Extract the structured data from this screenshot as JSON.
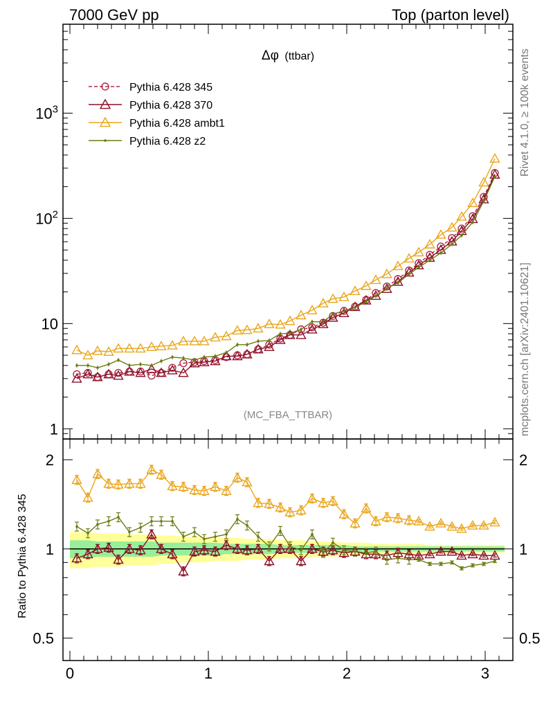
{
  "header": {
    "left": "7000 GeV pp",
    "right": "Top (parton level)"
  },
  "side_notes": {
    "rivet": "Rivet 4.1.0, ≥ 100k events",
    "mcplots": "mcplots.cern.ch [arXiv:2401.10621]"
  },
  "chart_data": {
    "type": "line",
    "title_symbol": "Δφ",
    "title_suffix": "(ttbar)",
    "reference_label": "(MC_FBA_TTBAR)",
    "xlim": [
      -0.05,
      3.2
    ],
    "main_panel": {
      "yscale": "log",
      "ylim": [
        0.8,
        7000
      ],
      "yticks": [
        {
          "value": 1,
          "label": "1"
        },
        {
          "value": 10,
          "label": "10"
        },
        {
          "value": 100,
          "label": "10",
          "sup": "2"
        },
        {
          "value": 1000,
          "label": "10",
          "sup": "3"
        }
      ]
    },
    "ratio_panel": {
      "ylabel": "Ratio to Pythia 6.428 345",
      "yscale": "log",
      "ylim": [
        0.42,
        2.35
      ],
      "yticks": [
        {
          "value": 0.5,
          "label": "0.5"
        },
        {
          "value": 1,
          "label": "1"
        },
        {
          "value": 2,
          "label": "2"
        }
      ]
    },
    "xticks": [
      {
        "value": 0,
        "label": "0"
      },
      {
        "value": 1,
        "label": "1"
      },
      {
        "value": 2,
        "label": "2"
      },
      {
        "value": 3,
        "label": "3"
      }
    ],
    "x": [
      0.05,
      0.13,
      0.2,
      0.28,
      0.35,
      0.43,
      0.51,
      0.59,
      0.66,
      0.74,
      0.82,
      0.9,
      0.97,
      1.05,
      1.13,
      1.21,
      1.28,
      1.36,
      1.44,
      1.52,
      1.59,
      1.67,
      1.75,
      1.83,
      1.9,
      1.98,
      2.06,
      2.14,
      2.21,
      2.29,
      2.37,
      2.45,
      2.52,
      2.6,
      2.68,
      2.76,
      2.83,
      2.91,
      2.99,
      3.07
    ],
    "ratio_band": {
      "inner_halfwidth": [
        0.07,
        0.07,
        0.06,
        0.06,
        0.06,
        0.06,
        0.06,
        0.06,
        0.05,
        0.05,
        0.05,
        0.05,
        0.05,
        0.05,
        0.04,
        0.04,
        0.04,
        0.04,
        0.04,
        0.03,
        0.03,
        0.03,
        0.03,
        0.03,
        0.03,
        0.03,
        0.02,
        0.02,
        0.02,
        0.02,
        0.02,
        0.02,
        0.02,
        0.02,
        0.02,
        0.02,
        0.02,
        0.02,
        0.02,
        0.02
      ],
      "outer_halfwidth": [
        0.14,
        0.14,
        0.13,
        0.13,
        0.13,
        0.12,
        0.12,
        0.12,
        0.11,
        0.11,
        0.1,
        0.1,
        0.1,
        0.09,
        0.09,
        0.09,
        0.08,
        0.08,
        0.08,
        0.07,
        0.07,
        0.07,
        0.06,
        0.06,
        0.06,
        0.05,
        0.05,
        0.05,
        0.04,
        0.04,
        0.04,
        0.04,
        0.04,
        0.03,
        0.03,
        0.03,
        0.03,
        0.03,
        0.03,
        0.03
      ]
    },
    "series": [
      {
        "name": "Pythia 6.428 345",
        "color": "#b0284a",
        "marker": "circle",
        "dashed": true,
        "values": [
          3.3,
          3.4,
          3.1,
          3.3,
          3.4,
          3.5,
          3.5,
          3.2,
          3.4,
          3.8,
          4.2,
          4.3,
          4.4,
          4.5,
          4.8,
          5.0,
          5.1,
          5.7,
          6.3,
          7.2,
          7.8,
          8.8,
          9.2,
          10.2,
          11.8,
          13.2,
          14.5,
          16.8,
          19.5,
          22.5,
          26.5,
          32.0,
          37.5,
          45.0,
          54.0,
          65.0,
          80.0,
          105.0,
          160.0,
          270.0
        ],
        "ratio": [
          1.0,
          1.0,
          1.0,
          1.0,
          1.0,
          1.0,
          1.0,
          1.0,
          1.0,
          1.0,
          1.0,
          1.0,
          1.0,
          1.0,
          1.0,
          1.0,
          1.0,
          1.0,
          1.0,
          1.0,
          1.0,
          1.0,
          1.0,
          1.0,
          1.0,
          1.0,
          1.0,
          1.0,
          1.0,
          1.0,
          1.0,
          1.0,
          1.0,
          1.0,
          1.0,
          1.0,
          1.0,
          1.0,
          1.0,
          1.0
        ],
        "show_ratio": false
      },
      {
        "name": "Pythia 6.428 370",
        "color": "#8b0f26",
        "marker": "triangle-open",
        "dashed": false,
        "values": [
          3.0,
          3.3,
          3.1,
          3.3,
          3.2,
          3.5,
          3.4,
          3.7,
          3.4,
          3.6,
          3.4,
          4.2,
          4.3,
          4.4,
          4.9,
          4.9,
          5.1,
          5.7,
          6.0,
          7.0,
          7.8,
          7.8,
          8.8,
          9.9,
          11.4,
          12.6,
          14.4,
          16.6,
          18.4,
          21.4,
          25.0,
          30.6,
          35.8,
          42.3,
          50.3,
          60.4,
          76.0,
          98.7,
          152.0,
          261.0
        ],
        "ratio": [
          0.93,
          0.96,
          1.0,
          1.01,
          0.92,
          1.0,
          0.99,
          1.12,
          1.0,
          0.96,
          0.84,
          0.98,
          0.99,
          0.98,
          1.03,
          1.0,
          0.99,
          1.0,
          0.91,
          1.0,
          1.0,
          0.91,
          1.0,
          0.98,
          0.99,
          0.97,
          0.98,
          0.96,
          0.96,
          0.95,
          0.97,
          0.96,
          0.95,
          0.96,
          0.98,
          0.98,
          0.95,
          0.96,
          0.95,
          0.95
        ],
        "show_ratio": true
      },
      {
        "name": "Pythia 6.428 ambt1",
        "color": "#eaa51a",
        "marker": "triangle-open",
        "dashed": false,
        "values": [
          5.6,
          5.0,
          5.5,
          5.4,
          5.8,
          5.8,
          5.8,
          6.0,
          6.1,
          6.2,
          6.8,
          6.8,
          6.8,
          7.4,
          7.6,
          8.6,
          8.7,
          9.0,
          9.9,
          9.8,
          10.6,
          12.0,
          13.4,
          15.6,
          17.2,
          17.9,
          20.4,
          22.8,
          26.0,
          29.6,
          35.2,
          41.6,
          47.6,
          56.6,
          70.0,
          82.0,
          104.0,
          140.0,
          220.0,
          370.0
        ],
        "ratio": [
          1.71,
          1.49,
          1.79,
          1.66,
          1.65,
          1.66,
          1.66,
          1.85,
          1.78,
          1.63,
          1.62,
          1.58,
          1.57,
          1.62,
          1.57,
          1.74,
          1.68,
          1.43,
          1.42,
          1.38,
          1.33,
          1.35,
          1.48,
          1.43,
          1.45,
          1.31,
          1.22,
          1.37,
          1.24,
          1.28,
          1.27,
          1.25,
          1.24,
          1.19,
          1.22,
          1.19,
          1.17,
          1.2,
          1.2,
          1.23
        ],
        "show_ratio": true
      },
      {
        "name": "Pythia 6.428 z2",
        "color": "#6b7a0f",
        "marker": "dot",
        "dashed": false,
        "values": [
          4.0,
          4.0,
          3.8,
          4.1,
          4.5,
          4.0,
          4.1,
          4.0,
          4.4,
          4.8,
          4.7,
          4.5,
          4.8,
          4.9,
          5.3,
          6.3,
          6.3,
          6.8,
          6.9,
          8.0,
          8.1,
          8.8,
          10.4,
          10.4,
          12.3,
          13.2,
          14.2,
          16.2,
          18.3,
          21.6,
          24.4,
          29.5,
          34.3,
          40.0,
          47.0,
          56.8,
          69.0,
          92.0,
          146.0,
          250.0
        ],
        "ratio": [
          1.19,
          1.13,
          1.21,
          1.24,
          1.28,
          1.14,
          1.18,
          1.24,
          1.24,
          1.24,
          1.1,
          1.14,
          1.08,
          1.1,
          1.12,
          1.26,
          1.2,
          1.1,
          1.02,
          1.15,
          1.02,
          0.99,
          1.12,
          0.97,
          1.05,
          0.99,
          0.98,
          0.97,
          0.98,
          0.92,
          0.93,
          0.92,
          0.92,
          0.89,
          0.89,
          0.9,
          0.86,
          0.88,
          0.89,
          0.91
        ],
        "show_ratio": true
      }
    ]
  }
}
